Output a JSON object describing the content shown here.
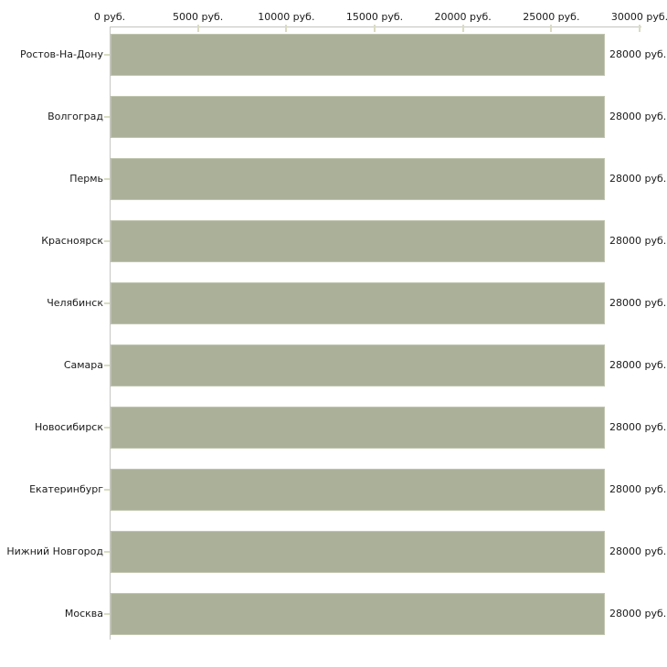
{
  "chart_data": {
    "type": "bar",
    "orientation": "horizontal",
    "categories": [
      "Ростов-На-Дону",
      "Волгоград",
      "Пермь",
      "Красноярск",
      "Челябинск",
      "Самара",
      "Новосибирск",
      "Екатеринбург",
      "Нижний Новгород",
      "Москва"
    ],
    "values": [
      28000,
      28000,
      28000,
      28000,
      28000,
      28000,
      28000,
      28000,
      28000,
      28000
    ],
    "value_labels": [
      "28000 руб.",
      "28000 руб.",
      "28000 руб.",
      "28000 руб.",
      "28000 руб.",
      "28000 руб.",
      "28000 руб.",
      "28000 руб.",
      "28000 руб.",
      "28000 руб."
    ],
    "x_axis": {
      "position": "top",
      "min": 0,
      "max": 30000,
      "ticks": [
        0,
        5000,
        10000,
        15000,
        20000,
        25000,
        30000
      ],
      "tick_labels": [
        "0 руб.",
        "5000 руб.",
        "10000 руб.",
        "15000 руб.",
        "20000 руб.",
        "25000 руб.",
        "30000 руб."
      ]
    },
    "unit": "руб.",
    "grid": false,
    "legend": false,
    "colors": {
      "bar": "#abb198",
      "bar_border": "#c0c5ae",
      "axis_line": "#c6c6c3",
      "tick_mark": "#d9dcc1",
      "text": "#1a1a1a",
      "background": "#ffffff"
    }
  }
}
